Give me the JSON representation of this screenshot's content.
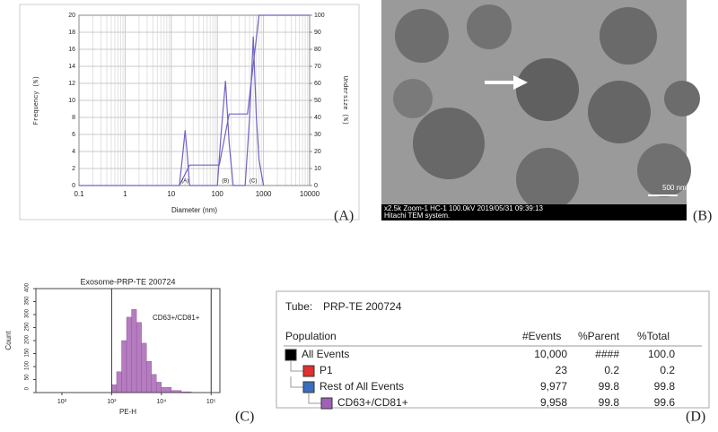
{
  "chart_data": [
    {
      "type": "line",
      "xscale": "log",
      "grid": true,
      "color": "#6f63c4",
      "xlabel": "Diameter (nm)",
      "ylabel": "Frequency (%)",
      "y2label": "Undersize (%)",
      "xlim": [
        0.1,
        10000
      ],
      "xticks": [
        0.1,
        1,
        10,
        100,
        1000,
        10000
      ],
      "ylim": [
        0,
        20
      ],
      "yticks": [
        0,
        2,
        4,
        6,
        8,
        10,
        12,
        14,
        16,
        18,
        20
      ],
      "y2lim": [
        0,
        100
      ],
      "y2ticks": [
        0,
        10,
        20,
        30,
        40,
        50,
        60,
        70,
        80,
        90,
        100
      ],
      "annotations": [
        {
          "text": "(A)",
          "x": 20
        },
        {
          "text": "(B)",
          "x": 150
        },
        {
          "text": "(C)",
          "x": 600
        }
      ],
      "series": [
        {
          "x": [
            15,
            18,
            20,
            22,
            25,
            100,
            120,
            150,
            180,
            220,
            400,
            500,
            600,
            700,
            800,
            1000
          ],
          "values": [
            0,
            4,
            6.5,
            4,
            0,
            0,
            6,
            12.3,
            5,
            0,
            0,
            8,
            17.5,
            8,
            3,
            0
          ]
        },
        {
          "axis": "y2",
          "x": [
            0.1,
            15,
            25,
            110,
            180,
            450,
            800,
            10000
          ],
          "values": [
            0,
            0,
            12,
            12,
            42,
            42,
            100,
            100
          ]
        }
      ]
    },
    {
      "type": "histogram",
      "xscale": "log",
      "color": "#b57cc0",
      "title": "Exosome-PRP-TE 200724",
      "xlabel": "PE-H",
      "ylabel": "Count",
      "gate_label": "CD63+/CD81+",
      "xlim": [
        30,
        150000
      ],
      "xticks": [
        {
          "value": 100,
          "label": "10²"
        },
        {
          "value": 1000,
          "label": "10³"
        },
        {
          "value": 10000,
          "label": "10⁴"
        },
        {
          "value": 100000,
          "label": "10⁵"
        }
      ],
      "ylim": [
        0,
        400
      ],
      "yticks": [
        0,
        50,
        100,
        150,
        200,
        250,
        300,
        350,
        400
      ],
      "gate": [
        1000,
        100000
      ],
      "bins": [
        1000,
        1259,
        1585,
        1995,
        2512,
        3162,
        3981,
        5012,
        6310,
        7943,
        10000,
        15849,
        25119,
        39811,
        63096,
        100000
      ],
      "counts": [
        30,
        80,
        200,
        290,
        320,
        270,
        190,
        120,
        70,
        40,
        20,
        8,
        3,
        1,
        0
      ]
    }
  ],
  "tem": {
    "caption": "x2.5k Zoom-1 HC-1 100.0kV 2019/05/31 09:39:13",
    "system": "Hitachi TEM system.",
    "scale": "500 nm"
  },
  "table": {
    "tube_label": "Tube:",
    "tube": "PRP-TE 200724",
    "headers": [
      "Population",
      "#Events",
      "%Parent",
      "%Total"
    ],
    "rows": [
      {
        "color": "#000000",
        "cells": [
          "All Events",
          "10,000",
          "####",
          "100.0"
        ]
      },
      {
        "color": "#e03030",
        "cells": [
          "P1",
          "23",
          "0.2",
          "0.2"
        ]
      },
      {
        "color": "#3a6fc0",
        "cells": [
          "Rest of All Events",
          "9,977",
          "99.8",
          "99.8"
        ]
      },
      {
        "color": "#a060b8",
        "cells": [
          "CD63+/CD81+",
          "9,958",
          "99.8",
          "99.6"
        ]
      }
    ]
  },
  "panel_labels": [
    "(A)",
    "(B)",
    "(C)",
    "(D)"
  ]
}
